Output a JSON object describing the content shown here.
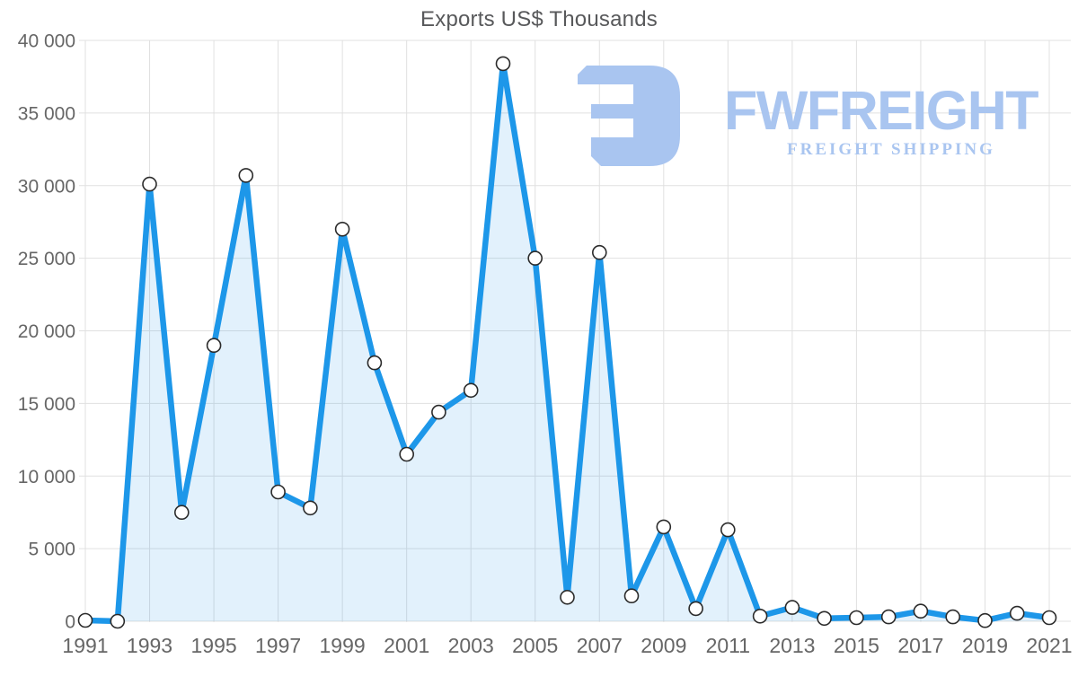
{
  "title": "Exports US$ Thousands",
  "logo": {
    "brand": "FWFREIGHT",
    "tagline": "FREIGHT SHIPPING",
    "color": "#a9c5f0"
  },
  "colors": {
    "line": "#1d97e9",
    "area_fill": "rgba(30,150,235,0.13)",
    "marker_fill": "#ffffff",
    "marker_stroke": "#2b2b2b",
    "grid": "#e0e0e0",
    "tick_label": "#666666",
    "title": "#58595b",
    "background": "#ffffff"
  },
  "chart_data": {
    "type": "line",
    "title": "Exports US$ Thousands",
    "xlabel": "",
    "ylabel": "",
    "x": [
      1991,
      1992,
      1993,
      1994,
      1995,
      1996,
      1997,
      1998,
      1999,
      2000,
      2001,
      2002,
      2003,
      2004,
      2005,
      2006,
      2007,
      2008,
      2009,
      2010,
      2011,
      2012,
      2013,
      2014,
      2015,
      2016,
      2017,
      2018,
      2019,
      2020,
      2021
    ],
    "values": [
      60,
      0,
      30100,
      7500,
      19000,
      30700,
      8900,
      7800,
      27000,
      17800,
      11500,
      14400,
      15900,
      38400,
      25000,
      1650,
      25400,
      1750,
      6500,
      870,
      6300,
      350,
      950,
      200,
      250,
      300,
      700,
      300,
      50,
      550,
      250
    ],
    "ylim": [
      0,
      40000
    ],
    "ytick_step": 5000,
    "ytick_labels": [
      "0",
      "5 000",
      "10 000",
      "15 000",
      "20 000",
      "25 000",
      "30 000",
      "35 000",
      "40 000"
    ],
    "xtick_labels": [
      "1991",
      "1993",
      "1995",
      "1997",
      "1999",
      "2001",
      "2003",
      "2005",
      "2007",
      "2009",
      "2011",
      "2013",
      "2015",
      "2017",
      "2019",
      "2021"
    ],
    "grid": true,
    "legend": false,
    "marker": "circle",
    "area_fill": true,
    "series_name": "Exports US$ Thousands"
  }
}
